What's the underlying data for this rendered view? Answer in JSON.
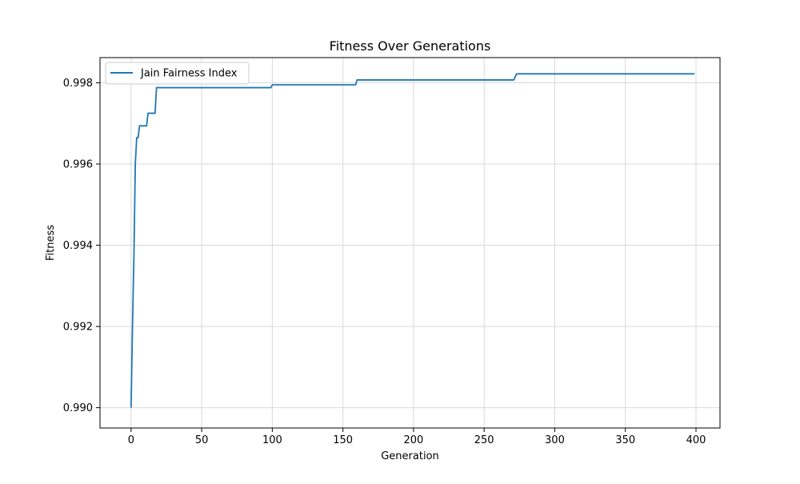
{
  "chart_data": {
    "type": "line",
    "title": "Fitness Over Generations",
    "xlabel": "Generation",
    "ylabel": "Fitness",
    "xlim": [
      -22,
      417
    ],
    "ylim": [
      0.9895,
      0.99862
    ],
    "xticks": [
      0,
      50,
      100,
      150,
      200,
      250,
      300,
      350,
      400
    ],
    "yticks": [
      0.99,
      0.992,
      0.994,
      0.996,
      0.998
    ],
    "ytick_labels": [
      "0.990",
      "0.992",
      "0.994",
      "0.996",
      "0.998"
    ],
    "grid": true,
    "legend": {
      "placement": "top-left"
    },
    "colors": {
      "series": "#1f77b4",
      "grid": "#d9d9d9",
      "axis": "#000000"
    },
    "series": [
      {
        "name": "Jain Fairness Index",
        "x": [
          0,
          1,
          2,
          3,
          4,
          5,
          6,
          11,
          12,
          17,
          18,
          99,
          100,
          159,
          160,
          271,
          272,
          273,
          399
        ],
        "y": [
          0.99,
          0.992,
          0.9937,
          0.996,
          0.99665,
          0.99665,
          0.99694,
          0.99694,
          0.99725,
          0.99725,
          0.99788,
          0.99788,
          0.99795,
          0.99795,
          0.99807,
          0.99807,
          0.99815,
          0.99822,
          0.99822
        ]
      }
    ]
  }
}
